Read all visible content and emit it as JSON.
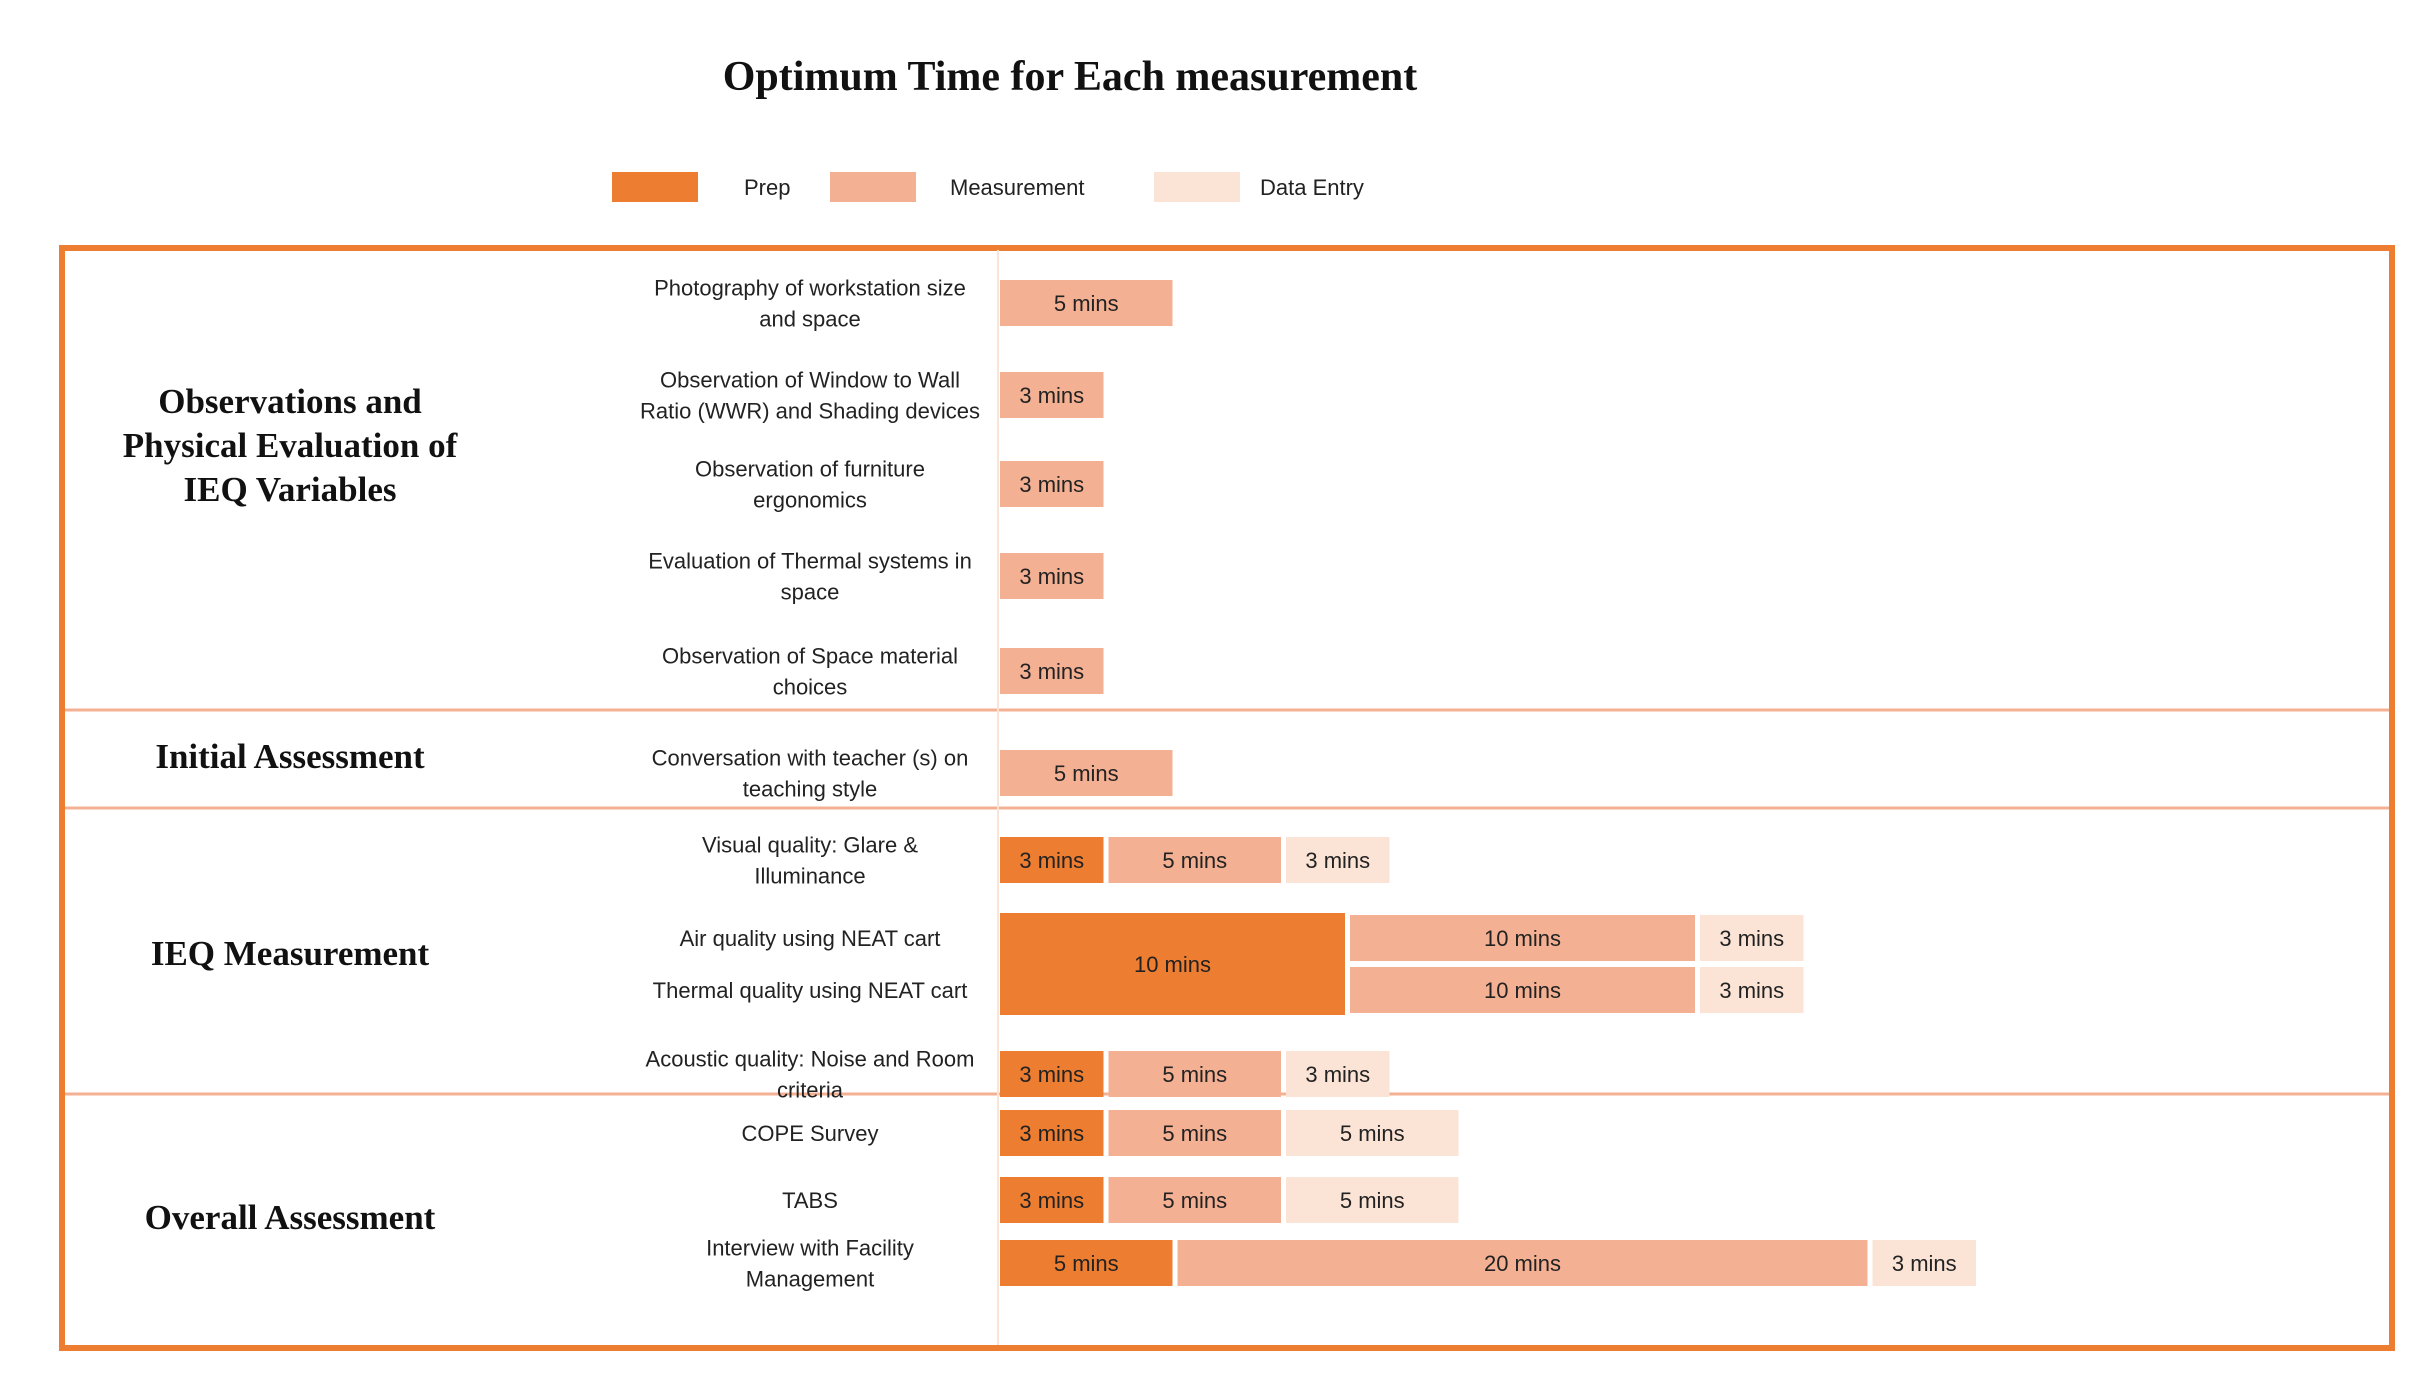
{
  "colors": {
    "prep": "#ED7D31",
    "measurement": "#F4B093",
    "data_entry": "#FBE4D6",
    "frame": "#ED7D31",
    "divider": "#F4B093"
  },
  "chart_data": {
    "type": "bar",
    "orientation": "horizontal-stacked",
    "title": "Optimum Time for Each measurement",
    "unit": "mins",
    "legend": {
      "position": "top",
      "entries": [
        "Prep",
        "Measurement",
        "Data Entry"
      ]
    },
    "series": [
      {
        "name": "Prep",
        "color": "#ED7D31"
      },
      {
        "name": "Measurement",
        "color": "#F4B093"
      },
      {
        "name": "Data Entry",
        "color": "#FBE4D6"
      }
    ],
    "sections": [
      {
        "name": "Observations and Physical Evaluation of IEQ Variables",
        "name_lines": [
          "Observations and",
          "Physical Evaluation of",
          "IEQ Variables"
        ],
        "tasks": [
          {
            "lines": [
              "Photography of workstation size",
              "and space"
            ],
            "prep": 0,
            "measurement": 5,
            "data_entry": 0,
            "labels": [
              "",
              "5 mins",
              ""
            ]
          },
          {
            "lines": [
              "Observation of Window to Wall",
              "Ratio (WWR) and Shading devices"
            ],
            "prep": 0,
            "measurement": 3,
            "data_entry": 0,
            "labels": [
              "",
              "3 mins",
              ""
            ]
          },
          {
            "lines": [
              "Observation of furniture",
              "ergonomics"
            ],
            "prep": 0,
            "measurement": 3,
            "data_entry": 0,
            "labels": [
              "",
              "3 mins",
              ""
            ]
          },
          {
            "lines": [
              "Evaluation of Thermal systems in",
              "space"
            ],
            "prep": 0,
            "measurement": 3,
            "data_entry": 0,
            "labels": [
              "",
              "3 mins",
              ""
            ]
          },
          {
            "lines": [
              "Observation of Space material",
              "choices"
            ],
            "prep": 0,
            "measurement": 3,
            "data_entry": 0,
            "labels": [
              "",
              "3 mins",
              ""
            ]
          }
        ]
      },
      {
        "name": "Initial Assessment",
        "name_lines": [
          "Initial Assessment"
        ],
        "tasks": [
          {
            "lines": [
              "Conversation with teacher (s) on",
              "teaching style"
            ],
            "prep": 0,
            "measurement": 5,
            "data_entry": 0,
            "labels": [
              "",
              "5 mins",
              ""
            ]
          }
        ]
      },
      {
        "name": "IEQ Measurement",
        "name_lines": [
          "IEQ Measurement"
        ],
        "tasks": [
          {
            "lines": [
              "Visual quality: Glare &",
              "Illuminance"
            ],
            "prep": 3,
            "measurement": 5,
            "data_entry": 3,
            "labels": [
              "3 mins",
              "5 mins",
              "3 mins"
            ]
          },
          {
            "lines": [
              "Air quality using NEAT cart"
            ],
            "prep": 10,
            "measurement": 10,
            "data_entry": 3,
            "labels": [
              "10 mins",
              "10 mins",
              "3 mins"
            ],
            "shared_prep_with_next": true
          },
          {
            "lines": [
              "Thermal quality using NEAT cart"
            ],
            "prep": 10,
            "measurement": 10,
            "data_entry": 3,
            "labels": [
              "",
              "10 mins",
              "3 mins"
            ],
            "shared_prep_with_previous": true
          },
          {
            "lines": [
              "Acoustic quality: Noise and Room",
              "criteria"
            ],
            "prep": 3,
            "measurement": 5,
            "data_entry": 3,
            "labels": [
              "3 mins",
              "5 mins",
              "3 mins"
            ]
          }
        ]
      },
      {
        "name": "Overall Assessment",
        "name_lines": [
          "Overall Assessment"
        ],
        "tasks": [
          {
            "lines": [
              "COPE Survey"
            ],
            "prep": 3,
            "measurement": 5,
            "data_entry": 5,
            "labels": [
              "3 mins",
              "5 mins",
              "5 mins"
            ]
          },
          {
            "lines": [
              "TABS"
            ],
            "prep": 3,
            "measurement": 5,
            "data_entry": 5,
            "labels": [
              "3 mins",
              "5 mins",
              "5 mins"
            ]
          },
          {
            "lines": [
              "Interview with Facility",
              "Management"
            ],
            "prep": 5,
            "measurement": 20,
            "data_entry": 3,
            "labels": [
              "5 mins",
              "20 mins",
              "3 mins"
            ]
          }
        ]
      }
    ]
  }
}
